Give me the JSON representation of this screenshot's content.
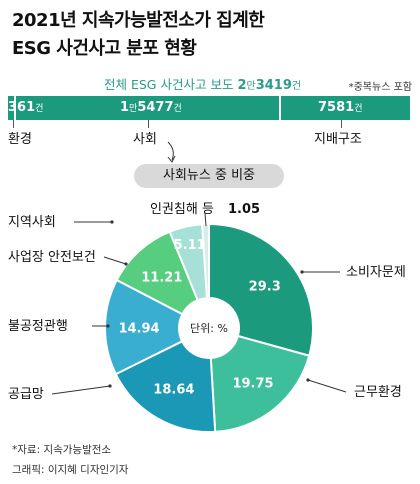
{
  "header": {
    "title_line1": "2021년 지속가능발전소가 집계한",
    "title_line2": "ESG 사건사고 분포 현황"
  },
  "total": {
    "prefix": "전체 ESG 사건사고 보도",
    "num1": "2",
    "unit1": "만",
    "num2": "3419",
    "unit2": "건",
    "note": "*중복뉴스 포함"
  },
  "breakdown": [
    {
      "label": "환경",
      "num": "361",
      "unit": "건",
      "count": 361
    },
    {
      "label": "사회",
      "num": "1",
      "unit_man": "만",
      "num2": "5477",
      "unit": "건",
      "count": 15477
    },
    {
      "label": "지배구조",
      "num": "7581",
      "unit": "건",
      "count": 7581
    }
  ],
  "colors": {
    "bar": "#1b9a7e",
    "slices": [
      "#1b9a7e",
      "#3dbf9c",
      "#1a98b5",
      "#3aaed0",
      "#57cd7f",
      "#a6e0d6",
      "#d7ede9"
    ],
    "title_accent": "#2a9c8b"
  },
  "section_label": "사회뉴스 중 비중",
  "center_label": "단위: %",
  "chart_data": {
    "type": "pie",
    "title": "사회뉴스 중 비중",
    "unit": "%",
    "categories": [
      "소비자문제",
      "근무환경",
      "공급망",
      "불공정관행",
      "사업장 안전보건",
      "지역사회",
      "인권침해 등"
    ],
    "values": [
      29.3,
      19.75,
      18.64,
      14.94,
      11.21,
      5.11,
      1.05
    ],
    "value_labels": [
      "29.3",
      "19.75",
      "18.64",
      "14.94",
      "11.21",
      "5.11",
      "1.05"
    ]
  },
  "footer": {
    "source": "*자료: 지속가능발전소",
    "credit": "그래픽: 이지혜 디자인기자"
  }
}
